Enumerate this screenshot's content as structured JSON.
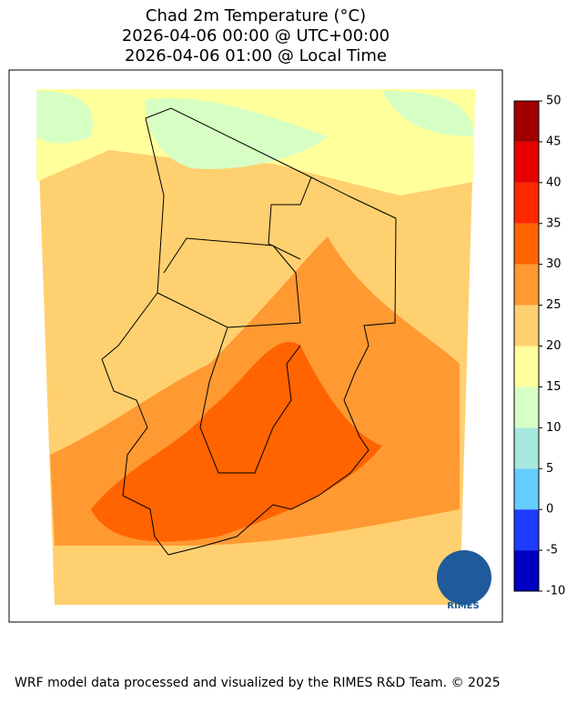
{
  "title_lines": [
    "Chad 2m Temperature (°C)",
    "2026-04-06 00:00 @ UTC+00:00",
    "2026-04-06 01:00 @ Local Time"
  ],
  "colorbar": {
    "ticks": [
      -10,
      -5,
      0,
      5,
      10,
      15,
      20,
      25,
      30,
      35,
      40,
      45,
      50
    ],
    "colors": [
      "#0000c0",
      "#1e3cff",
      "#64cdff",
      "#a6e8dc",
      "#d6ffc4",
      "#ffff9c",
      "#ffd070",
      "#ff9932",
      "#ff6400",
      "#ff2800",
      "#e60000",
      "#a00000"
    ]
  },
  "logo": "RIMES",
  "footer": "WRF model data processed and visualized by the RIMES R&D Team. © 2025"
}
